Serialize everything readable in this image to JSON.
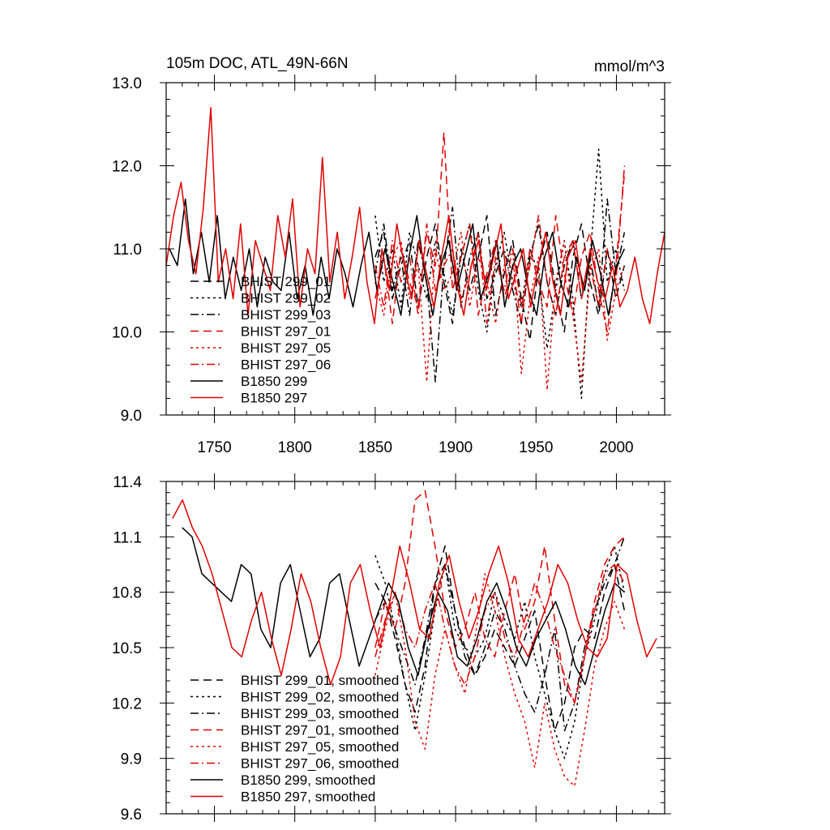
{
  "chart_data": [
    {
      "type": "line",
      "title": "105m DOC, ATL_49N-66N",
      "units": "mmol/m^3",
      "xlim": [
        1720,
        2030
      ],
      "ylim": [
        9.0,
        13.0
      ],
      "x_ticks": [
        1750,
        1800,
        1850,
        1900,
        1950,
        2000
      ],
      "y_ticks": [
        "9.0",
        "10.0",
        "11.0",
        "12.0",
        "13.0"
      ],
      "legend_location": "lower-left",
      "series": [
        {
          "name": "BHIST 299_01",
          "color": "#000000",
          "style": "dash",
          "start": 1850,
          "end": 2005,
          "values": [
            10.9,
            11.2,
            10.4,
            10.8,
            11.1,
            10.3,
            10.9,
            11.3,
            10.6,
            10.1,
            11.0,
            10.5,
            10.9,
            11.4,
            10.2,
            10.7,
            11.1,
            10.4,
            9.9,
            10.8,
            11.2,
            10.5,
            10.0,
            10.9,
            11.3,
            10.6,
            10.2,
            11.0,
            10.4,
            10.8
          ]
        },
        {
          "name": "BHIST 299_02",
          "color": "#000000",
          "style": "dot",
          "start": 1850,
          "end": 2005,
          "values": [
            11.4,
            10.6,
            11.0,
            10.3,
            11.2,
            10.8,
            10.4,
            11.1,
            10.7,
            10.2,
            10.9,
            11.3,
            10.5,
            10.0,
            10.8,
            11.2,
            10.6,
            10.3,
            11.0,
            10.7,
            9.8,
            10.5,
            11.1,
            10.4,
            9.2,
            10.9,
            12.2,
            10.6,
            11.0,
            10.5
          ]
        },
        {
          "name": "BHIST 299_03",
          "color": "#000000",
          "style": "dashdot",
          "start": 1850,
          "end": 2005,
          "values": [
            10.7,
            11.3,
            10.5,
            10.9,
            10.2,
            11.1,
            10.6,
            9.4,
            10.8,
            11.5,
            10.3,
            10.9,
            11.2,
            10.4,
            10.7,
            11.0,
            10.5,
            10.1,
            10.9,
            11.3,
            10.6,
            10.2,
            10.8,
            11.1,
            10.4,
            10.9,
            10.3,
            11.6,
            10.7,
            11.2
          ]
        },
        {
          "name": "BHIST 297_01",
          "color": "#e00000",
          "style": "dash",
          "start": 1850,
          "end": 2005,
          "values": [
            10.4,
            10.9,
            10.1,
            11.0,
            10.6,
            10.3,
            11.2,
            10.8,
            12.4,
            10.5,
            10.9,
            11.3,
            10.2,
            10.7,
            11.1,
            10.4,
            10.8,
            10.1,
            11.0,
            10.6,
            10.3,
            11.4,
            10.7,
            10.2,
            10.9,
            11.2,
            10.5,
            10.0,
            10.8,
            11.9
          ]
        },
        {
          "name": "BHIST 297_05",
          "color": "#e00000",
          "style": "dot",
          "start": 1850,
          "end": 2005,
          "values": [
            10.6,
            10.2,
            10.9,
            11.1,
            10.4,
            10.8,
            9.4,
            11.0,
            10.5,
            10.7,
            11.2,
            10.3,
            10.9,
            10.6,
            10.1,
            10.8,
            11.0,
            9.5,
            10.4,
            10.9,
            9.3,
            10.6,
            11.1,
            10.2,
            9.4,
            10.7,
            11.0,
            9.9,
            10.5,
            10.8
          ]
        },
        {
          "name": "BHIST 297_06",
          "color": "#e00000",
          "style": "dashdot",
          "start": 1850,
          "end": 2005,
          "values": [
            10.8,
            10.3,
            11.1,
            10.6,
            10.9,
            10.2,
            11.3,
            10.5,
            10.8,
            11.0,
            10.4,
            10.7,
            11.2,
            10.1,
            10.9,
            10.5,
            11.0,
            10.3,
            10.8,
            11.4,
            10.6,
            10.2,
            10.9,
            11.1,
            10.4,
            10.8,
            10.3,
            11.0,
            10.6,
            12.0
          ]
        },
        {
          "name": "B1850 299",
          "color": "#000000",
          "style": "solid",
          "start": 1722,
          "end": 2005,
          "values": [
            11.0,
            10.8,
            11.6,
            10.7,
            11.2,
            10.6,
            11.4,
            10.4,
            10.9,
            10.5,
            11.0,
            10.3,
            10.9,
            10.6,
            10.5,
            11.2,
            10.4,
            10.8,
            10.2,
            10.9,
            10.4,
            11.0,
            10.7,
            10.3,
            10.8,
            11.2,
            10.5,
            11.0,
            10.6,
            10.2,
            10.9,
            11.4,
            10.7,
            10.2,
            10.8,
            11.1,
            10.5,
            10.9,
            11.3,
            10.4,
            10.7,
            11.1,
            10.3,
            10.8,
            11.0,
            10.5,
            10.2,
            10.9,
            11.2,
            10.6,
            10.3,
            10.9,
            10.5,
            11.1,
            10.7,
            10.2,
            10.8,
            11.0
          ]
        },
        {
          "name": "B1850 297",
          "color": "#e00000",
          "style": "solid",
          "start": 1720,
          "end": 2030,
          "values": [
            10.8,
            11.4,
            11.8,
            11.1,
            10.7,
            11.5,
            12.7,
            10.6,
            11.0,
            10.4,
            11.3,
            10.2,
            11.1,
            10.8,
            10.5,
            11.4,
            10.9,
            11.6,
            10.3,
            11.0,
            10.7,
            12.1,
            10.6,
            11.2,
            10.4,
            10.9,
            11.5,
            10.6,
            10.1,
            11.0,
            10.5,
            11.3,
            10.8,
            10.4,
            11.1,
            10.7,
            10.3,
            10.9,
            11.4,
            10.6,
            10.2,
            10.8,
            11.1,
            10.5,
            10.9,
            11.3,
            10.4,
            10.7,
            11.0,
            10.3,
            10.8,
            11.2,
            10.6,
            10.2,
            10.9,
            11.1,
            10.5,
            11.0,
            10.6,
            10.4,
            10.8,
            10.3,
            10.5,
            10.9,
            10.4,
            10.1,
            10.7,
            11.2
          ]
        }
      ]
    },
    {
      "type": "line",
      "title": "",
      "xlim": [
        1720,
        2030
      ],
      "ylim": [
        9.6,
        11.4
      ],
      "x_ticks": [
        1750,
        1800,
        1850,
        1900,
        1950,
        2000
      ],
      "y_ticks": [
        "9.6",
        "9.9",
        "10.2",
        "10.5",
        "10.8",
        "11.1",
        "11.4"
      ],
      "legend_location": "lower-left",
      "series": [
        {
          "name": "BHIST 299_01, smoothed",
          "color": "#000000",
          "style": "dash",
          "start": 1850,
          "end": 2005,
          "values": [
            10.85,
            10.75,
            10.55,
            10.3,
            10.15,
            10.4,
            10.85,
            11.05,
            10.7,
            10.5,
            10.35,
            10.45,
            10.6,
            10.5,
            10.4,
            10.55,
            10.7,
            10.35,
            10.05,
            10.2,
            10.5,
            10.6,
            10.55,
            10.8,
            10.95,
            10.7
          ]
        },
        {
          "name": "BHIST 299_02, smoothed",
          "color": "#000000",
          "style": "dot",
          "start": 1850,
          "end": 2005,
          "values": [
            11.0,
            10.85,
            10.6,
            10.3,
            10.05,
            10.35,
            10.7,
            10.95,
            10.6,
            10.5,
            10.45,
            10.55,
            10.8,
            10.65,
            10.55,
            10.75,
            10.45,
            10.25,
            10.05,
            9.9,
            10.1,
            10.45,
            10.65,
            10.9,
            11.05,
            10.8
          ]
        },
        {
          "name": "BHIST 299_03, smoothed",
          "color": "#000000",
          "style": "dashdot",
          "start": 1850,
          "end": 2005,
          "values": [
            10.65,
            10.75,
            10.6,
            10.45,
            10.3,
            10.55,
            10.85,
            10.95,
            10.7,
            10.45,
            10.35,
            10.5,
            10.7,
            10.6,
            10.4,
            10.25,
            10.15,
            10.35,
            10.6,
            10.05,
            10.2,
            10.5,
            10.7,
            10.85,
            10.95,
            11.1
          ]
        },
        {
          "name": "BHIST 297_01, smoothed",
          "color": "#e00000",
          "style": "dash",
          "start": 1850,
          "end": 2005,
          "values": [
            10.5,
            10.75,
            10.6,
            10.85,
            11.3,
            11.35,
            11.05,
            10.7,
            10.5,
            10.6,
            10.8,
            10.55,
            10.45,
            10.7,
            10.9,
            10.6,
            10.75,
            11.05,
            10.65,
            10.3,
            10.2,
            10.45,
            10.75,
            10.95,
            11.05,
            11.1
          ]
        },
        {
          "name": "BHIST 297_05, smoothed",
          "color": "#e00000",
          "style": "dot",
          "start": 1850,
          "end": 2005,
          "values": [
            10.35,
            10.6,
            10.8,
            10.5,
            10.1,
            9.95,
            10.35,
            10.6,
            10.4,
            10.25,
            10.55,
            10.9,
            10.7,
            10.45,
            10.25,
            10.1,
            9.85,
            10.2,
            9.95,
            9.8,
            9.75,
            10.05,
            10.4,
            10.6,
            10.75,
            10.6
          ]
        },
        {
          "name": "BHIST 297_06, smoothed",
          "color": "#e00000",
          "style": "dashdot",
          "start": 1850,
          "end": 2005,
          "values": [
            10.45,
            10.65,
            10.8,
            10.6,
            10.5,
            10.7,
            10.85,
            10.6,
            10.4,
            10.3,
            10.45,
            10.7,
            10.8,
            10.55,
            10.45,
            10.65,
            10.85,
            10.7,
            10.5,
            10.35,
            10.2,
            10.45,
            10.7,
            10.9,
            10.95,
            10.85
          ]
        },
        {
          "name": "B1850 299, smoothed",
          "color": "#000000",
          "style": "solid",
          "start": 1730,
          "end": 2005,
          "values": [
            11.15,
            11.1,
            10.9,
            10.85,
            10.8,
            10.75,
            10.95,
            10.9,
            10.6,
            10.5,
            10.85,
            10.95,
            10.7,
            10.45,
            10.55,
            10.85,
            10.9,
            10.65,
            10.4,
            10.55,
            10.7,
            10.85,
            10.75,
            10.5,
            10.35,
            10.6,
            10.8,
            10.7,
            10.45,
            10.4,
            10.55,
            10.75,
            10.85,
            10.7,
            10.5,
            10.4,
            10.55,
            10.65,
            10.75,
            10.6,
            10.4,
            10.3,
            10.5,
            10.7,
            10.85,
            10.8
          ]
        },
        {
          "name": "B1850 297, smoothed",
          "color": "#e00000",
          "style": "solid",
          "start": 1724,
          "end": 2025,
          "values": [
            11.2,
            11.3,
            11.15,
            11.05,
            10.9,
            10.7,
            10.5,
            10.45,
            10.65,
            10.8,
            10.55,
            10.35,
            10.6,
            10.9,
            10.75,
            10.5,
            10.3,
            10.45,
            10.85,
            10.95,
            10.7,
            10.5,
            10.75,
            11.05,
            10.85,
            10.6,
            10.55,
            10.85,
            11.0,
            10.75,
            10.55,
            10.7,
            10.9,
            11.05,
            10.85,
            10.55,
            10.45,
            10.6,
            10.75,
            10.95,
            10.85,
            10.65,
            10.5,
            10.45,
            10.55,
            10.95,
            10.9,
            10.65,
            10.45,
            10.55
          ]
        }
      ]
    }
  ]
}
